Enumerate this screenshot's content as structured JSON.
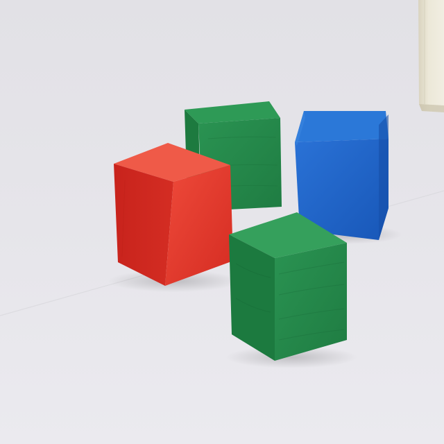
{
  "scene": {
    "background_color": "#e4e3e8",
    "objects": [
      {
        "name": "red-cube",
        "color": "#e0362b"
      },
      {
        "name": "green-cube-back",
        "color": "#25894a"
      },
      {
        "name": "blue-cube",
        "color": "#1c63c6"
      },
      {
        "name": "green-cube-front",
        "color": "#22894a"
      },
      {
        "name": "wooden-block-edge",
        "color": "#e6e1cf"
      }
    ]
  }
}
